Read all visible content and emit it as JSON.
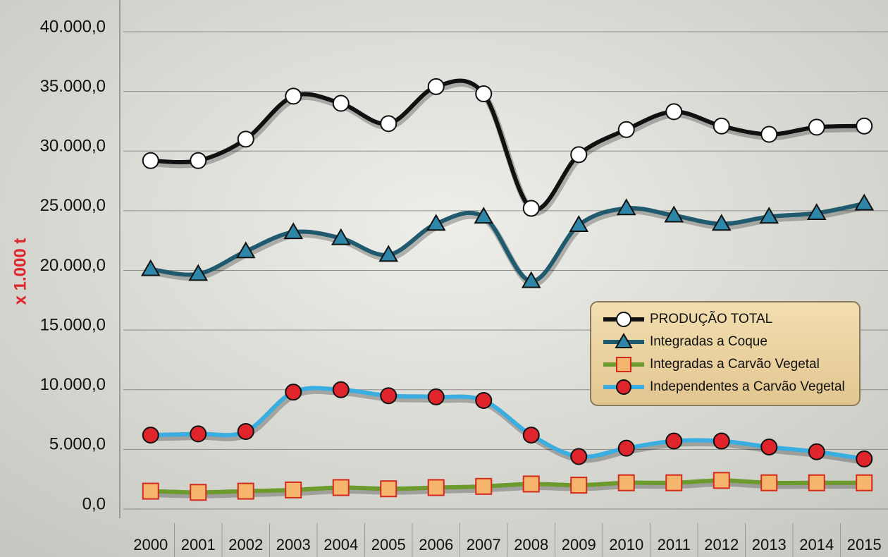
{
  "chart_data": {
    "type": "line",
    "y_label": "x 1.000 t",
    "categories": [
      "2000",
      "2001",
      "2002",
      "2003",
      "2004",
      "2005",
      "2006",
      "2007",
      "2008",
      "2009",
      "2010",
      "2011",
      "2012",
      "2013",
      "2014",
      "2015"
    ],
    "series": [
      {
        "name": "PRODUÇÃO TOTAL",
        "color": "#111111",
        "marker": "circle",
        "marker_color": "#ffffff",
        "values": [
          29200,
          29200,
          31000,
          34600,
          34000,
          32300,
          35400,
          34800,
          25200,
          29700,
          31800,
          33300,
          32100,
          31400,
          32000,
          32100
        ]
      },
      {
        "name": "Integradas a Coque",
        "color": "#1f5a6e",
        "marker": "triangle",
        "marker_color": "#2e86a8",
        "values": [
          20100,
          19700,
          21600,
          23200,
          22700,
          21300,
          23900,
          24500,
          19100,
          23800,
          25200,
          24600,
          23900,
          24500,
          24800,
          25600
        ]
      },
      {
        "name": "Integradas a Carvão Vegetal",
        "color": "#6c9a2c",
        "marker": "square",
        "marker_color": "#f6b56c",
        "values": [
          1500,
          1400,
          1500,
          1600,
          1800,
          1700,
          1800,
          1900,
          2100,
          2000,
          2200,
          2200,
          2400,
          2200,
          2200,
          2200
        ]
      },
      {
        "name": "Independentes a Carvão Vegetal",
        "color": "#3aaee0",
        "marker": "circle",
        "marker_color": "#e0242b",
        "values": [
          6200,
          6300,
          6500,
          9800,
          10000,
          9500,
          9400,
          9100,
          6200,
          4400,
          5100,
          5700,
          5700,
          5200,
          4800,
          4200
        ]
      }
    ],
    "ylim": [
      0,
      40000
    ],
    "yticks": [
      {
        "value": 0,
        "label": "0,0"
      },
      {
        "value": 5000,
        "label": "5.000,0"
      },
      {
        "value": 10000,
        "label": "10.000,0"
      },
      {
        "value": 15000,
        "label": "15.000,0"
      },
      {
        "value": 20000,
        "label": "20.000,0"
      },
      {
        "value": 25000,
        "label": "25.000,0"
      },
      {
        "value": 30000,
        "label": "30.000,0"
      },
      {
        "value": 35000,
        "label": "35.000,0"
      },
      {
        "value": 40000,
        "label": "40.000,0"
      }
    ],
    "grid": true,
    "legend": "right"
  }
}
